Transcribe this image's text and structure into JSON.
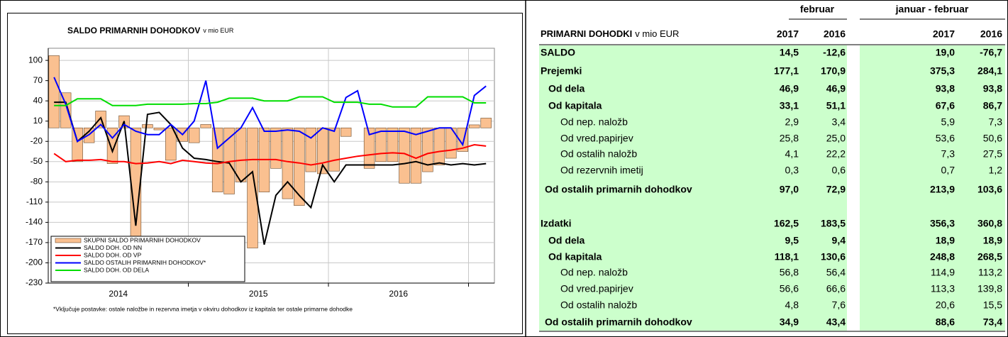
{
  "chart_data": {
    "type": "bar-line",
    "title": "SALDO PRIMARNIH DOHODKOV",
    "title_unit": "v mio EUR",
    "footnote": "*Vključuje postavke: ostale naložbe in rezervna imetja v okviru dohodkov iz kapitala ter ostale primarne dohodke",
    "x_groups": [
      "2014",
      "2015",
      "2016"
    ],
    "categories": [
      null,
      null,
      null,
      null,
      null,
      null,
      null,
      null,
      null,
      null,
      null,
      null,
      null,
      null,
      null,
      null,
      null,
      null,
      null,
      null,
      null,
      null,
      null,
      null,
      null,
      null,
      null,
      null,
      null,
      null,
      null,
      null,
      null,
      null,
      null,
      null,
      null,
      null
    ],
    "ylim": [
      -230,
      118
    ],
    "yticks": [
      100,
      70,
      40,
      10,
      -20,
      -50,
      -80,
      -110,
      -140,
      -170,
      -200,
      -230
    ],
    "grid": true,
    "series": [
      {
        "name": "SKUPNI SALDO PRIMARNIH DOHODKOV",
        "kind": "bar",
        "color": "#fac090",
        "values": [
          107,
          52,
          -50,
          -22,
          25,
          -53,
          18,
          -200,
          5,
          -3,
          -48,
          -20,
          -22,
          5,
          -95,
          -98,
          -80,
          -178,
          -95,
          -60,
          -105,
          -115,
          -65,
          -68,
          -64.1,
          -12.6,
          0,
          -60,
          -50,
          -50,
          -82,
          -82,
          -65,
          -55,
          -45,
          -35,
          4.5,
          14.5
        ]
      },
      {
        "name": "SALDO DOH. OD NN",
        "kind": "line",
        "color": "#000000",
        "values": [
          38,
          38,
          -20,
          -5,
          15,
          -35,
          10,
          -145,
          20,
          23,
          5,
          -30,
          -45,
          -47,
          -50,
          -52,
          -80,
          -65,
          -173,
          -100,
          -80,
          -100,
          -118,
          -55,
          -80,
          -55,
          -55,
          -55,
          -55,
          -55,
          -53,
          -50,
          -55,
          -52,
          -55,
          -53,
          -55,
          -53
        ]
      },
      {
        "name": "SALDO DOH. OD VP",
        "kind": "line",
        "color": "#ff0000",
        "values": [
          -38,
          -50,
          -48,
          -48,
          -47,
          -50,
          -50,
          -53,
          -52,
          -50,
          -53,
          -48,
          -50,
          -52,
          -53,
          -50,
          -48,
          -47,
          -47,
          -47,
          -50,
          -52,
          -55,
          -52,
          -48,
          -45,
          -42,
          -40,
          -38,
          -37,
          -38,
          -45,
          -38,
          -35,
          -33,
          -30,
          -25,
          -27
        ]
      },
      {
        "name": "SALDO OSTALIH PRIMARNIH DOHODKOV*",
        "kind": "line",
        "color": "#0000ff",
        "values": [
          75,
          35,
          -20,
          -10,
          5,
          -15,
          5,
          -5,
          -10,
          -10,
          5,
          -10,
          10,
          70,
          -30,
          -15,
          0,
          30,
          -5,
          -5,
          -3,
          -5,
          -15,
          0,
          -5,
          45,
          55,
          -10,
          -5,
          -5,
          -5,
          -10,
          -5,
          0,
          0,
          -25,
          48,
          62
        ]
      },
      {
        "name": "SALDO DOH. OD DELA",
        "kind": "line",
        "color": "#00dd00",
        "values": [
          33,
          33,
          43,
          43,
          43,
          33,
          33,
          33,
          35,
          35,
          35,
          35,
          36,
          36,
          38,
          44,
          44,
          44,
          40,
          40,
          40,
          46,
          46,
          46,
          38,
          38,
          38,
          35,
          35,
          31,
          31,
          31,
          46,
          46,
          46,
          46,
          37,
          37
        ]
      }
    ]
  },
  "table": {
    "group_headers": [
      "februar",
      "januar - februar"
    ],
    "title": "PRIMARNI DOHODKI",
    "title_unit": "v mio EUR",
    "columns": [
      "2017",
      "2016",
      "2017",
      "2016"
    ],
    "rows": [
      [
        "SALDO",
        "14,5",
        "-12,6",
        "19,0",
        "-76,7"
      ],
      [
        "Prejemki",
        "177,1",
        "170,9",
        "375,3",
        "284,1"
      ],
      [
        "Od dela",
        "46,9",
        "46,9",
        "93,8",
        "93,8"
      ],
      [
        "Od kapitala",
        "33,1",
        "51,1",
        "67,6",
        "86,7"
      ],
      [
        "Od nep. naložb",
        "2,9",
        "3,4",
        "5,9",
        "7,3"
      ],
      [
        "Od vred.papirjev",
        "25,8",
        "25,0",
        "53,6",
        "50,6"
      ],
      [
        "Od ostalih naložb",
        "4,1",
        "22,2",
        "7,3",
        "27,5"
      ],
      [
        "Od rezervnih imetij",
        "0,3",
        "0,6",
        "0,7",
        "1,2"
      ],
      [
        "Od ostalih primarnih dohodkov",
        "97,0",
        "72,9",
        "213,9",
        "103,6"
      ],
      [
        "Izdatki",
        "162,5",
        "183,5",
        "356,3",
        "360,8"
      ],
      [
        "Od dela",
        "9,5",
        "9,4",
        "18,9",
        "18,9"
      ],
      [
        "Od kapitala",
        "118,1",
        "130,6",
        "248,8",
        "268,5"
      ],
      [
        "Od nep. naložb",
        "56,8",
        "56,4",
        "114,9",
        "113,2"
      ],
      [
        "Od vred.papirjev",
        "56,6",
        "66,6",
        "113,3",
        "139,8"
      ],
      [
        "Od ostalih naložb",
        "4,8",
        "7,6",
        "20,6",
        "15,5"
      ],
      [
        "Od ostalih primarnih dohodkov",
        "34,9",
        "43,4",
        "88,6",
        "73,4"
      ]
    ]
  }
}
